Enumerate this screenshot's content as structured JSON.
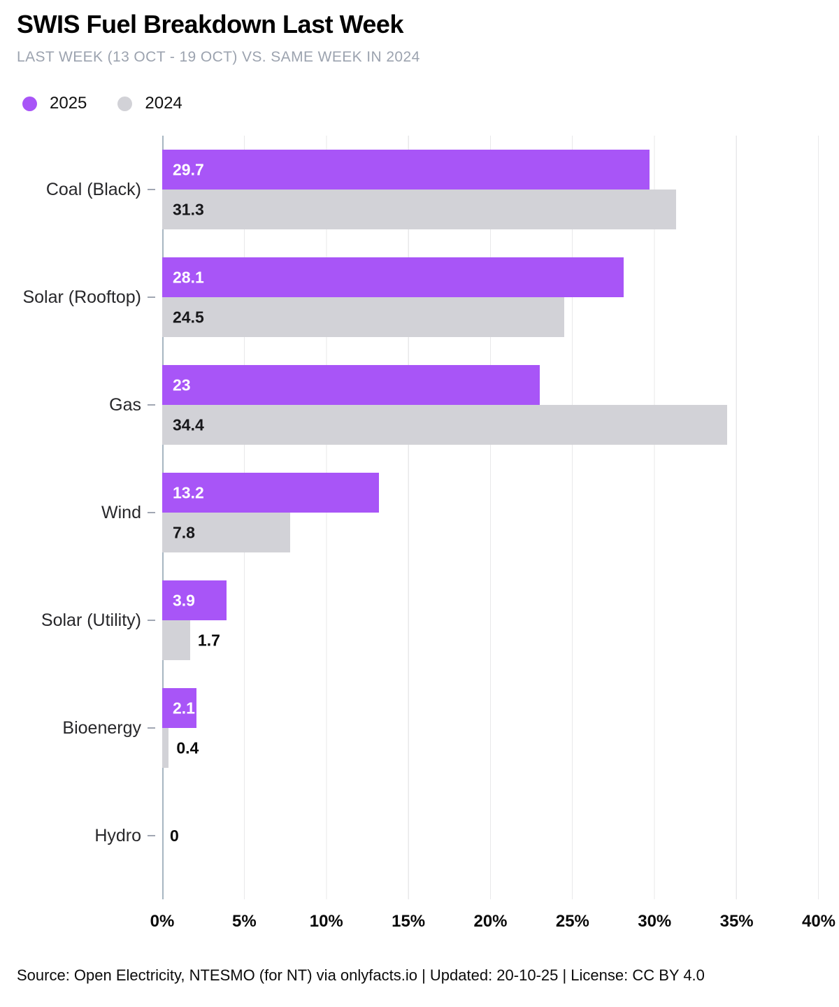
{
  "header": {
    "title": "SWIS Fuel Breakdown Last Week",
    "subtitle": "LAST WEEK (13 OCT - 19 OCT) VS. SAME WEEK IN 2024"
  },
  "legend": [
    {
      "label": "2025",
      "color": "#A855F7"
    },
    {
      "label": "2024",
      "color": "#D2D2D7"
    }
  ],
  "chart_data": {
    "type": "bar",
    "orientation": "horizontal",
    "title": "SWIS Fuel Breakdown Last Week",
    "subtitle": "LAST WEEK (13 OCT - 19 OCT) VS. SAME WEEK IN 2024",
    "unit": "%",
    "xlim": [
      0,
      40
    ],
    "xticks": [
      "0%",
      "5%",
      "10%",
      "15%",
      "20%",
      "25%",
      "30%",
      "35%",
      "40%"
    ],
    "grid": "vertical",
    "legend_position": "top-left",
    "accent_color": "#A855F7",
    "gray_color": "#D2D2D7",
    "categories": [
      "Coal (Black)",
      "Solar (Rooftop)",
      "Gas",
      "Wind",
      "Solar (Utility)",
      "Bioenergy",
      "Hydro"
    ],
    "series": [
      {
        "name": "2025",
        "color": "#A855F7",
        "values": [
          29.7,
          28.1,
          23,
          13.2,
          3.9,
          2.1,
          0
        ]
      },
      {
        "name": "2024",
        "color": "#D2D2D7",
        "values": [
          31.3,
          24.5,
          34.4,
          7.8,
          1.7,
          0.4,
          0
        ]
      }
    ],
    "rows": [
      {
        "category": "Coal (Black)",
        "bars": [
          {
            "series": "2025",
            "value": 29.7,
            "label": "29.7",
            "label_pos": "inside"
          },
          {
            "series": "2024",
            "value": 31.3,
            "label": "31.3",
            "label_pos": "inside"
          }
        ]
      },
      {
        "category": "Solar (Rooftop)",
        "bars": [
          {
            "series": "2025",
            "value": 28.1,
            "label": "28.1",
            "label_pos": "inside"
          },
          {
            "series": "2024",
            "value": 24.5,
            "label": "24.5",
            "label_pos": "inside"
          }
        ]
      },
      {
        "category": "Gas",
        "bars": [
          {
            "series": "2025",
            "value": 23,
            "label": "23",
            "label_pos": "inside"
          },
          {
            "series": "2024",
            "value": 34.4,
            "label": "34.4",
            "label_pos": "inside"
          }
        ]
      },
      {
        "category": "Wind",
        "bars": [
          {
            "series": "2025",
            "value": 13.2,
            "label": "13.2",
            "label_pos": "inside"
          },
          {
            "series": "2024",
            "value": 7.8,
            "label": "7.8",
            "label_pos": "inside"
          }
        ]
      },
      {
        "category": "Solar (Utility)",
        "bars": [
          {
            "series": "2025",
            "value": 3.9,
            "label": "3.9",
            "label_pos": "inside"
          },
          {
            "series": "2024",
            "value": 1.7,
            "label": "1.7",
            "label_pos": "outside"
          }
        ]
      },
      {
        "category": "Bioenergy",
        "bars": [
          {
            "series": "2025",
            "value": 2.1,
            "label": "2.1",
            "label_pos": "inside"
          },
          {
            "series": "2024",
            "value": 0.4,
            "label": "0.4",
            "label_pos": "outside"
          }
        ]
      },
      {
        "category": "Hydro",
        "bars": [
          {
            "series": "2025",
            "value": 0,
            "label": "0",
            "label_pos": "outside"
          },
          {
            "series": "2024",
            "value": 0,
            "label": "",
            "label_pos": "outside"
          }
        ]
      }
    ]
  },
  "footer": {
    "text": "Source: Open Electricity, NTESMO (for NT) via onlyfacts.io | Updated: 20-10-25 | License: CC BY 4.0"
  }
}
